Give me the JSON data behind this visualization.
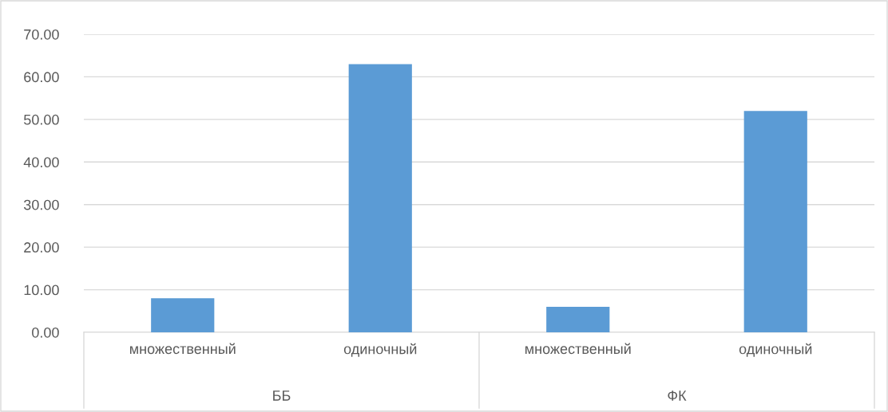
{
  "chart_data": {
    "type": "bar",
    "categories": [
      "множественный",
      "одиночный",
      "множественный",
      "одиночный"
    ],
    "values": [
      8,
      63,
      6,
      52
    ],
    "color": "#5b9bd5",
    "ylim": [
      0,
      70
    ],
    "yticks": [
      {
        "value": 0,
        "label": "0.00"
      },
      {
        "value": 10,
        "label": "10.00"
      },
      {
        "value": 20,
        "label": "20.00"
      },
      {
        "value": 30,
        "label": "30.00"
      },
      {
        "value": 40,
        "label": "40.00"
      },
      {
        "value": 50,
        "label": "50.00"
      },
      {
        "value": 60,
        "label": "60.00"
      },
      {
        "value": 70,
        "label": "70.00"
      }
    ],
    "grid": "y",
    "annotations": [
      "ББ",
      "ФК"
    ]
  }
}
